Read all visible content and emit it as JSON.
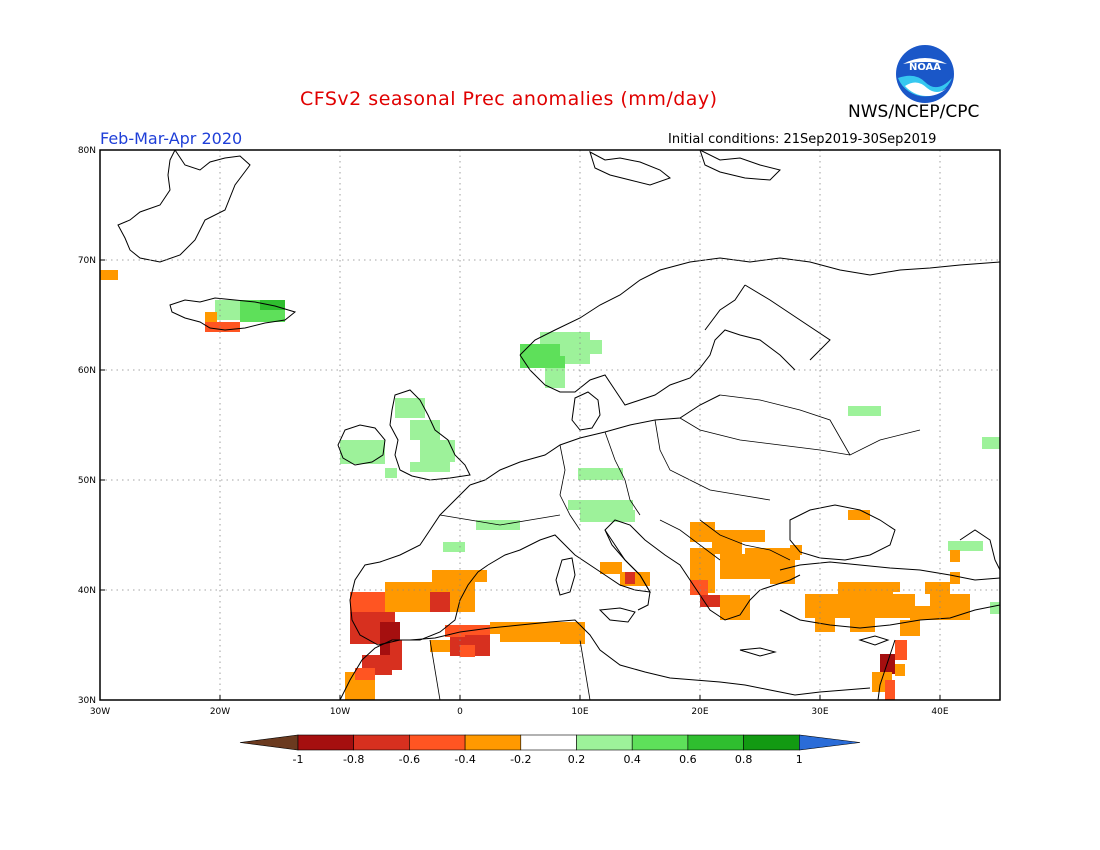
{
  "header": {
    "title": "CFSv2 seasonal Prec anomalies (mm/day)",
    "org": "NWS/NCEP/CPC",
    "period": "Feb-Mar-Apr 2020",
    "initial_conditions": "Initial conditions: 21Sep2019-30Sep2019",
    "logo_text": "NOAA"
  },
  "map": {
    "lat_labels": [
      "80N",
      "70N",
      "60N",
      "50N",
      "40N",
      "30N"
    ],
    "lon_labels": [
      "30W",
      "20W",
      "10W",
      "0",
      "10E",
      "20E",
      "30E",
      "40E"
    ],
    "extent": {
      "lon_min": -30,
      "lon_max": 45,
      "lat_min": 30,
      "lat_max": 80
    }
  },
  "colorbar": {
    "labels": [
      "-1",
      "-0.8",
      "-0.6",
      "-0.4",
      "-0.2",
      "0.2",
      "0.4",
      "0.6",
      "0.8",
      "1"
    ],
    "colors": [
      "#6b3a1f",
      "#a50f0f",
      "#d7301f",
      "#ff5522",
      "#ff9900",
      "#ffffff",
      "#9df29a",
      "#5ee05a",
      "#2fbe2f",
      "#129a12",
      "#2a6cd8"
    ]
  }
}
